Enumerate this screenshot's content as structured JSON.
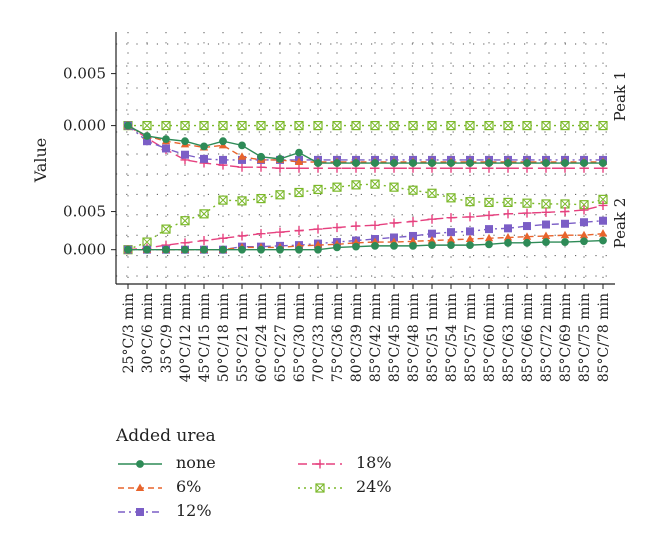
{
  "chart_data": {
    "type": "line",
    "ylabel": "Value",
    "x": [
      "25°C/3 min",
      "30°C/6 min",
      "35°C/9 min",
      "40°C/12 min",
      "45°C/15 min",
      "50°C/18 min",
      "55°C/21 min",
      "60°C/24 min",
      "65°C/27 min",
      "65°C/30 min",
      "70°C/33 min",
      "75°C/36 min",
      "80°C/39 min",
      "85°C/42 min",
      "85°C/45 min",
      "85°C/48 min",
      "85°C/51 min",
      "85°C/54 min",
      "85°C/57 min",
      "85°C/60 min",
      "85°C/63 min",
      "85°C/66 min",
      "85°C/72 min",
      "85°C/69 min",
      "85°C/75 min",
      "85°C/78 min"
    ],
    "grid": true,
    "legend_title": "Added urea",
    "legend_position": "bottom",
    "panels": [
      {
        "label": "Peak 1",
        "ylim": [
          -0.0035,
          0.009
        ],
        "yticks": [
          0.0,
          0.005
        ],
        "ytick_labels": [
          "0.000",
          "0.005"
        ],
        "series": [
          {
            "name": "none",
            "color": "#2e8b57",
            "marker": "circle",
            "dash": "solid",
            "values": [
              0.0,
              -0.001,
              -0.0013,
              -0.0015,
              -0.002,
              -0.0015,
              -0.0019,
              -0.003,
              -0.0032,
              -0.0026,
              -0.0036,
              -0.0036,
              -0.0036,
              -0.0036,
              -0.0036,
              -0.0036,
              -0.0036,
              -0.0036,
              -0.0036,
              -0.0036,
              -0.0036,
              -0.0036,
              -0.0036,
              -0.0036,
              -0.0036,
              -0.0036
            ]
          },
          {
            "name": "6%",
            "color": "#e8642c",
            "marker": "triangle",
            "dash": "dashed",
            "values": [
              0.0,
              -0.001,
              -0.0015,
              -0.0018,
              -0.0021,
              -0.0019,
              -0.003,
              -0.0033,
              -0.0033,
              -0.0035,
              -0.0035,
              -0.0035,
              -0.0035,
              -0.0035,
              -0.0035,
              -0.0035,
              -0.0035,
              -0.0035,
              -0.0035,
              -0.0035,
              -0.0035,
              -0.0035,
              -0.0035,
              -0.0035,
              -0.0035,
              -0.0035
            ]
          },
          {
            "name": "12%",
            "color": "#7b5ec6",
            "marker": "square",
            "dash": "dashdot",
            "values": [
              0.0,
              -0.0015,
              -0.0022,
              -0.0028,
              -0.0032,
              -0.0033,
              -0.0033,
              -0.0033,
              -0.0033,
              -0.0033,
              -0.0033,
              -0.0033,
              -0.0033,
              -0.0033,
              -0.0033,
              -0.0033,
              -0.0033,
              -0.0033,
              -0.0033,
              -0.0033,
              -0.0033,
              -0.0033,
              -0.0033,
              -0.0033,
              -0.0033,
              -0.0033
            ]
          },
          {
            "name": "18%",
            "color": "#e6417f",
            "marker": "plus",
            "dash": "longdash",
            "values": [
              0.0,
              -0.0012,
              -0.0023,
              -0.0033,
              -0.0036,
              -0.0038,
              -0.004,
              -0.004,
              -0.0041,
              -0.0041,
              -0.0041,
              -0.0041,
              -0.0041,
              -0.0041,
              -0.0041,
              -0.0041,
              -0.0041,
              -0.0041,
              -0.0041,
              -0.0041,
              -0.0041,
              -0.0041,
              -0.0041,
              -0.0041,
              -0.0041,
              -0.0041
            ]
          },
          {
            "name": "24%",
            "color": "#7ab828",
            "marker": "boxcross",
            "dash": "dotted",
            "values": [
              0.0,
              0.0,
              0.0,
              0.0,
              0.0,
              0.0,
              0.0,
              0.0,
              0.0,
              0.0,
              0.0,
              0.0,
              0.0,
              0.0,
              0.0,
              0.0,
              0.0,
              0.0,
              0.0,
              0.0,
              0.0,
              0.0,
              0.0,
              0.0,
              0.0,
              0.0
            ]
          }
        ]
      },
      {
        "label": "Peak 2",
        "ylim": [
          -0.0045,
          0.0115
        ],
        "yticks": [
          0.0,
          0.005
        ],
        "ytick_labels": [
          "0.000",
          "0.005"
        ],
        "series": [
          {
            "name": "none",
            "color": "#2e8b57",
            "marker": "circle",
            "dash": "solid",
            "values": [
              0.0,
              0.0,
              0.0,
              0.0,
              0.0,
              0.0,
              0.0,
              0.0,
              0.0,
              0.0,
              0.0,
              0.0003,
              0.0004,
              0.0005,
              0.0005,
              0.0005,
              0.0006,
              0.0006,
              0.0006,
              0.0007,
              0.0009,
              0.0009,
              0.001,
              0.001,
              0.0011,
              0.0012
            ]
          },
          {
            "name": "6%",
            "color": "#e8642c",
            "marker": "triangle",
            "dash": "dashed",
            "values": [
              0.0,
              0.0,
              0.0,
              0.0,
              0.0,
              0.0,
              0.0003,
              0.0003,
              0.0003,
              0.0005,
              0.0006,
              0.0007,
              0.0009,
              0.001,
              0.001,
              0.0011,
              0.0012,
              0.0013,
              0.0014,
              0.0015,
              0.0016,
              0.0017,
              0.0018,
              0.0019,
              0.0019,
              0.0021
            ]
          },
          {
            "name": "12%",
            "color": "#7b5ec6",
            "marker": "square",
            "dash": "dashdot",
            "values": [
              0.0,
              0.0,
              0.0,
              0.0,
              0.0,
              0.0,
              0.0004,
              0.0004,
              0.0005,
              0.0006,
              0.0008,
              0.001,
              0.0012,
              0.0014,
              0.0016,
              0.0018,
              0.0021,
              0.0023,
              0.0024,
              0.0027,
              0.0028,
              0.0031,
              0.0033,
              0.0034,
              0.0036,
              0.0038
            ]
          },
          {
            "name": "18%",
            "color": "#e6417f",
            "marker": "plus",
            "dash": "longdash",
            "values": [
              0.0,
              0.0002,
              0.0006,
              0.0009,
              0.0012,
              0.0015,
              0.0018,
              0.0021,
              0.0023,
              0.0025,
              0.0027,
              0.0029,
              0.0031,
              0.0032,
              0.0035,
              0.0037,
              0.004,
              0.0042,
              0.0043,
              0.0045,
              0.0047,
              0.0048,
              0.0049,
              0.005,
              0.0052,
              0.0058
            ]
          },
          {
            "name": "24%",
            "color": "#7ab828",
            "marker": "boxcross",
            "dash": "dotted",
            "values": [
              0.0,
              0.001,
              0.0027,
              0.0038,
              0.0047,
              0.0065,
              0.0064,
              0.0067,
              0.0072,
              0.0075,
              0.0079,
              0.0082,
              0.0085,
              0.0086,
              0.0082,
              0.0078,
              0.0074,
              0.0068,
              0.0063,
              0.0062,
              0.0062,
              0.0061,
              0.006,
              0.006,
              0.0059,
              0.0066
            ]
          }
        ]
      }
    ]
  }
}
